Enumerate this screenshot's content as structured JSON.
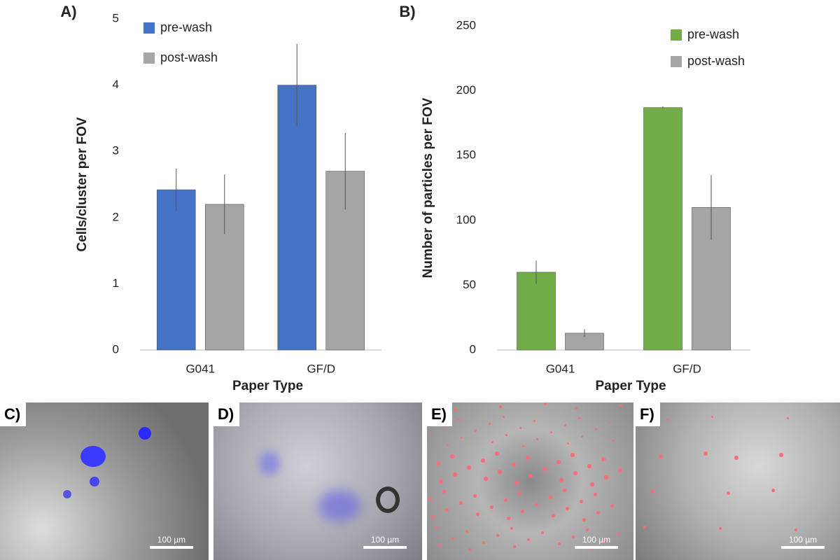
{
  "chart_data": [
    {
      "type": "bar",
      "title": "A)",
      "ylabel": "Cells/cluster per FOV",
      "xlabel": "Paper Type",
      "categories": [
        "G041",
        "GF/D"
      ],
      "series": [
        {
          "name": "pre-wash",
          "color": "#4472c4",
          "values": [
            2.42,
            4.0
          ],
          "errors": [
            0.32,
            0.62
          ]
        },
        {
          "name": "post-wash",
          "color": "#a5a5a5",
          "values": [
            2.2,
            2.7
          ],
          "errors": [
            0.45,
            0.58
          ]
        }
      ],
      "ylim": [
        0,
        5
      ],
      "yticks": [
        0,
        1,
        2,
        3,
        4,
        5
      ],
      "grid": false,
      "legend": "upper-left"
    },
    {
      "type": "bar",
      "title": "B)",
      "ylabel": "Number of particles per FOV",
      "xlabel": "Paper Type",
      "categories": [
        "G041",
        "GF/D"
      ],
      "series": [
        {
          "name": "pre-wash",
          "color": "#70ad47",
          "values": [
            60,
            187
          ],
          "errors": [
            9,
            1
          ]
        },
        {
          "name": "post-wash",
          "color": "#a5a5a5",
          "values": [
            13,
            110
          ],
          "errors": [
            3,
            25
          ]
        }
      ],
      "ylim": [
        0,
        250
      ],
      "yticks": [
        0,
        50,
        100,
        150,
        200,
        250
      ],
      "grid": false,
      "legend": "upper-right"
    }
  ],
  "panels": [
    {
      "label": "C)",
      "scale": "100 µm"
    },
    {
      "label": "D)",
      "scale": "100 µm"
    },
    {
      "label": "E)",
      "scale": "100 µm"
    },
    {
      "label": "F)",
      "scale": "100 µm"
    }
  ]
}
